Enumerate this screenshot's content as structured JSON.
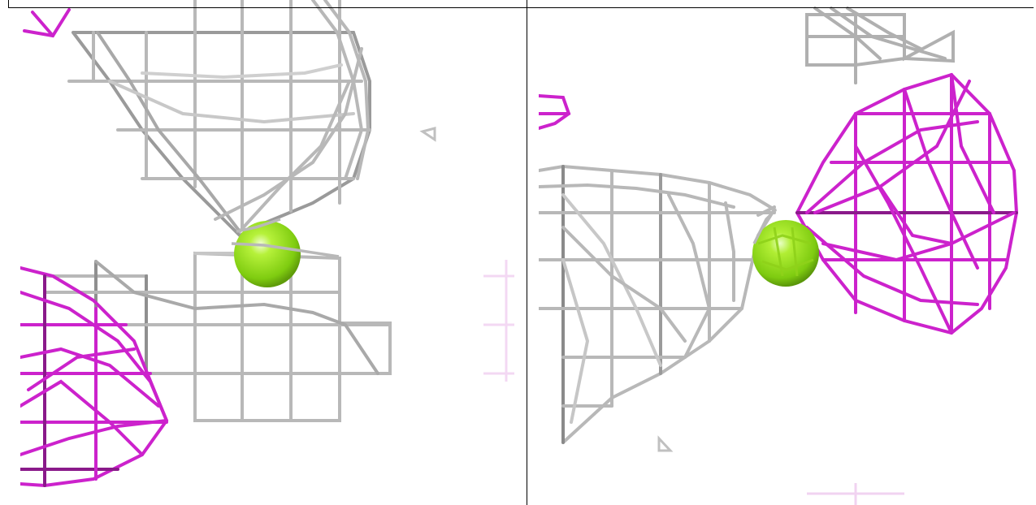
{
  "figure": {
    "panels": [
      {
        "id": "left",
        "mesh_colors": [
          "#b9b9b9",
          "#cc33cc"
        ],
        "sphere_color": "#8fe01a"
      },
      {
        "id": "right",
        "mesh_colors": [
          "#b9b9b9",
          "#cc33cc"
        ],
        "sphere_color": "#8fe01a"
      }
    ],
    "colors": {
      "grey_mesh": "#b5b5b5",
      "grey_mesh_dark": "#7a7a7a",
      "magenta_mesh": "#cc22cc",
      "magenta_mesh_dark": "#8a1a8a",
      "sphere": "#8fe01a",
      "background": "#ffffff"
    }
  }
}
